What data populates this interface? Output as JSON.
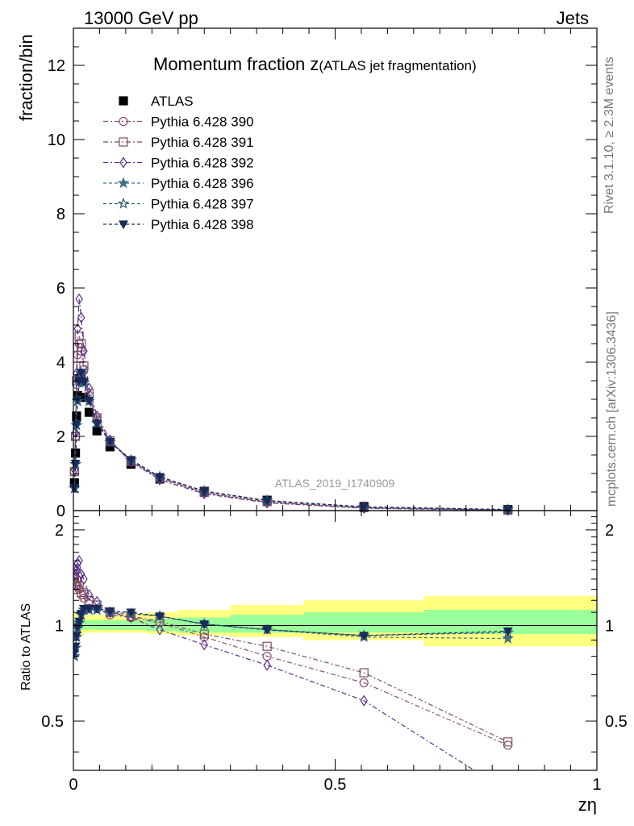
{
  "header": {
    "left": "13000 GeV pp",
    "right": "Jets"
  },
  "side_labels": {
    "rivet": "Rivet 3.1.10, ≥ 2.3M events",
    "mcplots": "mcplots.cern.ch [arXiv:1306.3436]"
  },
  "watermark": "ATLAS_2019_I1740909",
  "chart_data": [
    {
      "type": "scatter",
      "title_main": "Momentum fraction z",
      "title_sub": "(ATLAS jet fragmentation)",
      "ylabel": "fraction/bin",
      "xlim": [
        0,
        1
      ],
      "ylim": [
        0,
        13
      ],
      "yticks": [
        0,
        2,
        4,
        6,
        8,
        10,
        12
      ],
      "legend_position": "top-left",
      "x": [
        0.002,
        0.004,
        0.006,
        0.008,
        0.011,
        0.015,
        0.02,
        0.03,
        0.045,
        0.07,
        0.11,
        0.165,
        0.25,
        0.37,
        0.555,
        0.83
      ],
      "series": [
        {
          "name": "ATLAS",
          "color": "#000000",
          "marker": "square-filled",
          "dash": "none",
          "values": [
            0.75,
            1.55,
            2.55,
            3.1,
            3.55,
            3.6,
            3.05,
            2.65,
            2.15,
            1.72,
            1.25,
            0.85,
            0.52,
            0.28,
            0.11,
            0.03
          ]
        },
        {
          "name": "Pythia 6.428 390",
          "color": "#8b4f7a",
          "marker": "circle-open",
          "dash": "6,3,2,3",
          "values": [
            1.05,
            2.0,
            3.4,
            4.2,
            4.5,
            4.3,
            3.8,
            3.1,
            2.45,
            1.85,
            1.32,
            0.87,
            0.48,
            0.225,
            0.073,
            0.013
          ]
        },
        {
          "name": "Pythia 6.428 391",
          "color": "#7a4f5e",
          "marker": "square-open",
          "dash": "6,3,2,3",
          "values": [
            1.05,
            2.0,
            3.5,
            4.4,
            4.7,
            4.5,
            3.9,
            3.15,
            2.5,
            1.88,
            1.33,
            0.88,
            0.49,
            0.24,
            0.078,
            0.013
          ]
        },
        {
          "name": "Pythia 6.428 392",
          "color": "#5b2f8a",
          "marker": "diamond-open",
          "dash": "6,3,2,3",
          "values": [
            1.1,
            2.1,
            3.7,
            4.9,
            5.7,
            5.2,
            4.3,
            3.3,
            2.55,
            1.9,
            1.32,
            0.83,
            0.455,
            0.21,
            0.063,
            0.009
          ]
        },
        {
          "name": "Pythia 6.428 396",
          "color": "#3f6f8a",
          "marker": "star-filled",
          "dash": "4,3",
          "values": [
            0.6,
            1.25,
            2.3,
            2.95,
            3.45,
            3.7,
            3.45,
            2.95,
            2.35,
            1.85,
            1.36,
            0.91,
            0.525,
            0.27,
            0.1,
            0.027
          ]
        },
        {
          "name": "Pythia 6.428 397",
          "color": "#2f5a7a",
          "marker": "star-open",
          "dash": "4,3",
          "values": [
            0.6,
            1.25,
            2.3,
            2.95,
            3.45,
            3.7,
            3.45,
            2.95,
            2.35,
            1.85,
            1.36,
            0.91,
            0.525,
            0.27,
            0.102,
            0.028
          ]
        },
        {
          "name": "Pythia 6.428 398",
          "color": "#1a2a5a",
          "marker": "triangle-down-filled",
          "dash": "4,3",
          "values": [
            0.62,
            1.27,
            2.33,
            3.0,
            3.5,
            3.72,
            3.47,
            2.97,
            2.36,
            1.86,
            1.37,
            0.91,
            0.525,
            0.27,
            0.102,
            0.028
          ]
        }
      ]
    },
    {
      "type": "scatter",
      "ylabel": "Ratio to ATLAS",
      "xlabel": "zη",
      "xlim": [
        0,
        1
      ],
      "ylim": [
        0.35,
        2.3
      ],
      "yticks": [
        0.5,
        1,
        2
      ],
      "xticks": [
        0,
        0.5,
        1
      ],
      "xticklabels": [
        "0",
        "0.5",
        "1"
      ],
      "yticklabels": [
        "0.5",
        "1",
        "2"
      ],
      "reference_line": 1,
      "bands": {
        "edges": [
          0,
          0.01,
          0.02,
          0.03,
          0.05,
          0.09,
          0.14,
          0.2,
          0.3,
          0.44,
          0.67,
          1.0
        ],
        "outer_lower": [
          0.9,
          0.93,
          0.95,
          0.95,
          0.95,
          0.95,
          0.94,
          0.93,
          0.92,
          0.9,
          0.86
        ],
        "outer_upper": [
          1.1,
          1.09,
          1.08,
          1.08,
          1.08,
          1.09,
          1.1,
          1.12,
          1.16,
          1.2,
          1.24
        ],
        "inner_lower": [
          0.97,
          0.97,
          0.97,
          0.97,
          0.97,
          0.97,
          0.96,
          0.95,
          0.95,
          0.95,
          0.94
        ],
        "inner_upper": [
          1.04,
          1.04,
          1.04,
          1.04,
          1.04,
          1.04,
          1.05,
          1.06,
          1.08,
          1.1,
          1.12
        ],
        "outer_color": "#ffff80",
        "inner_color": "#99ff99"
      },
      "x": [
        0.002,
        0.004,
        0.006,
        0.008,
        0.011,
        0.015,
        0.02,
        0.03,
        0.045,
        0.07,
        0.11,
        0.165,
        0.25,
        0.37,
        0.555,
        0.83
      ],
      "series": [
        {
          "name": "Pythia 6.428 390",
          "color": "#8b4f7a",
          "marker": "circle-open",
          "dash": "6,3,2,3",
          "values": [
            1.4,
            1.35,
            1.33,
            1.33,
            1.3,
            1.25,
            1.22,
            1.17,
            1.13,
            1.08,
            1.06,
            1.02,
            0.92,
            0.8,
            0.66,
            0.42
          ]
        },
        {
          "name": "Pythia 6.428 391",
          "color": "#7a4f5e",
          "marker": "square-open",
          "dash": "6,3,2,3",
          "values": [
            1.4,
            1.3,
            1.38,
            1.42,
            1.33,
            1.27,
            1.25,
            1.2,
            1.16,
            1.1,
            1.07,
            1.03,
            0.94,
            0.86,
            0.71,
            0.43
          ]
        },
        {
          "name": "Pythia 6.428 392",
          "color": "#5b2f8a",
          "marker": "diamond-open",
          "dash": "6,3,2,3",
          "values": [
            1.5,
            1.45,
            1.5,
            1.57,
            1.6,
            1.45,
            1.4,
            1.25,
            1.19,
            1.1,
            1.06,
            0.97,
            0.87,
            0.75,
            0.58,
            0.3
          ]
        },
        {
          "name": "Pythia 6.428 396",
          "color": "#3f6f8a",
          "marker": "star-filled",
          "dash": "4,3",
          "values": [
            0.8,
            0.85,
            0.92,
            0.98,
            1.02,
            1.08,
            1.12,
            1.12,
            1.12,
            1.1,
            1.09,
            1.07,
            1.01,
            0.97,
            0.92,
            0.91
          ]
        },
        {
          "name": "Pythia 6.428 397",
          "color": "#2f5a7a",
          "marker": "star-open",
          "dash": "4,3",
          "values": [
            0.8,
            0.85,
            0.92,
            0.98,
            1.02,
            1.08,
            1.12,
            1.12,
            1.12,
            1.1,
            1.09,
            1.07,
            1.01,
            0.97,
            0.93,
            0.95
          ]
        },
        {
          "name": "Pythia 6.428 398",
          "color": "#1a2a5a",
          "marker": "triangle-down-filled",
          "dash": "4,3",
          "values": [
            0.82,
            0.86,
            0.93,
            0.99,
            1.03,
            1.09,
            1.13,
            1.13,
            1.13,
            1.11,
            1.1,
            1.07,
            1.01,
            0.97,
            0.93,
            0.96
          ]
        }
      ]
    }
  ]
}
